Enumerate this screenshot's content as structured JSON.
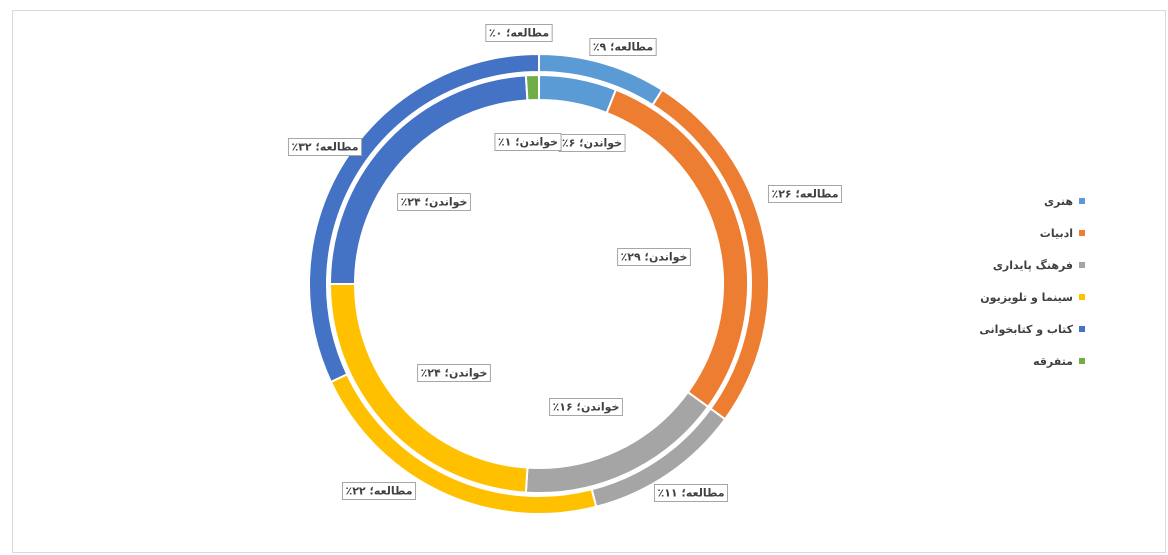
{
  "chart_data": {
    "type": "doughnut",
    "categories": [
      "هنری",
      "ادبیات",
      "فرهنگ پایداری",
      "سینما و تلویزیون",
      "کتاب و کتابخوانی",
      "متفرقه"
    ],
    "colors": [
      "#5b9bd5",
      "#ed7d31",
      "#a5a5a5",
      "#ffc000",
      "#4472c4",
      "#70ad47"
    ],
    "series": [
      {
        "name": "مطالعه",
        "ring": "outer",
        "values": [
          9,
          26,
          11,
          22,
          32,
          0
        ],
        "labels": [
          "مطالعه؛ ۹٪",
          "مطالعه؛ ۲۶٪",
          "مطالعه؛ ۱۱٪",
          "مطالعه؛ ۲۲٪",
          "مطالعه؛ ۳۲٪",
          "مطالعه؛ ۰٪"
        ]
      },
      {
        "name": "خواندن",
        "ring": "inner",
        "values": [
          6,
          29,
          16,
          24,
          24,
          1
        ],
        "labels": [
          "خواندن؛ ۶٪",
          "خواندن؛ ۲۹٪",
          "خواندن؛ ۱۶٪",
          "خواندن؛ ۲۴٪",
          "خواندن؛ ۲۴٪",
          "خواندن؛ ۱٪"
        ]
      }
    ],
    "legend_position": "right",
    "title": ""
  }
}
